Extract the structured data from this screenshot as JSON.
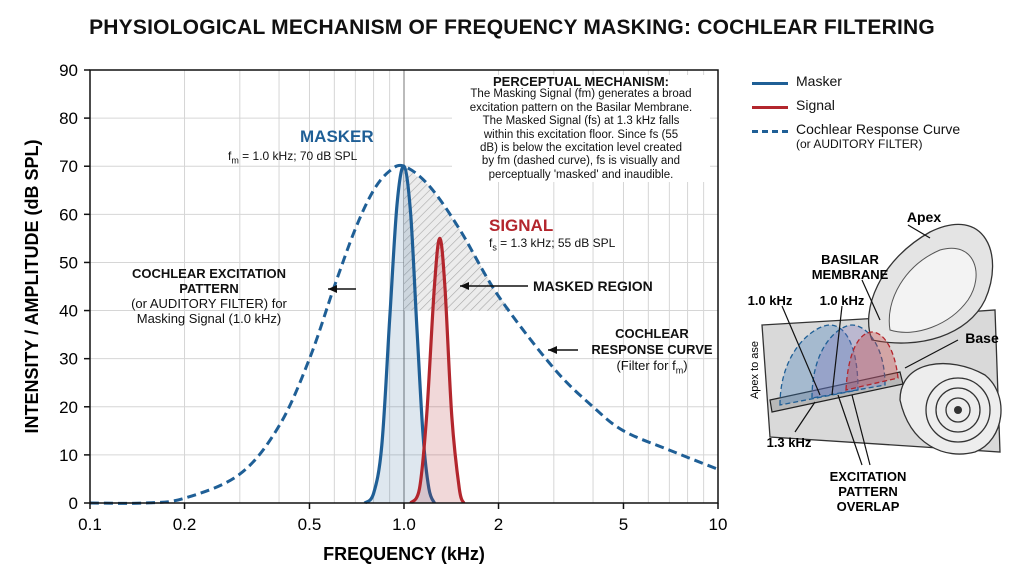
{
  "title": "PHYSIOLOGICAL MECHANISM OF FREQUENCY MASKING: COCHLEAR FILTERING",
  "colors": {
    "masker": "#1f5f96",
    "signal": "#b3262d",
    "response": "#1f5f96",
    "axis": "#111111"
  },
  "chart_data": {
    "type": "line",
    "xscale": "log",
    "xlim": [
      0.1,
      10
    ],
    "ylim": [
      0,
      90
    ],
    "xlabel": "FREQUENCY (kHz)",
    "ylabel": "INTENSITY / AMPLITUDE (dB SPL)",
    "xticks": [
      0.1,
      0.2,
      0.5,
      1.0,
      2,
      5,
      10
    ],
    "xtick_labels": [
      "0.1",
      "0.2",
      "0.5",
      "1.0",
      "2",
      "5",
      "10"
    ],
    "yticks": [
      0,
      10,
      20,
      30,
      40,
      50,
      60,
      70,
      80,
      90
    ],
    "grid": true,
    "series": [
      {
        "name": "Masker",
        "style": "solid",
        "color": "#1f5f96",
        "x": [
          0.75,
          0.8,
          0.85,
          0.9,
          0.95,
          1.0,
          1.05,
          1.1,
          1.15,
          1.2,
          1.25
        ],
        "y": [
          0,
          2,
          12,
          38,
          62,
          70,
          60,
          36,
          14,
          3,
          0
        ]
      },
      {
        "name": "Signal",
        "style": "solid",
        "color": "#b3262d",
        "x": [
          1.05,
          1.12,
          1.18,
          1.25,
          1.3,
          1.35,
          1.42,
          1.5,
          1.55
        ],
        "y": [
          0,
          3,
          18,
          45,
          55,
          45,
          18,
          3,
          0
        ]
      },
      {
        "name": "Cochlear Response Curve",
        "style": "dashed",
        "color": "#1f5f96",
        "x": [
          0.1,
          0.15,
          0.2,
          0.3,
          0.4,
          0.5,
          0.6,
          0.7,
          0.8,
          0.9,
          1.0,
          1.2,
          1.5,
          2,
          3,
          4,
          5,
          7,
          10
        ],
        "y": [
          0,
          0,
          1,
          6,
          16,
          30,
          45,
          57,
          65,
          69,
          70,
          66,
          57,
          43,
          28,
          20,
          15,
          11,
          7
        ]
      }
    ],
    "masked_region": {
      "x": [
        1.0,
        2.2
      ],
      "y_floor": 40
    },
    "annotations": {
      "masker_title": "MASKER",
      "masker_detail_sym": "f",
      "masker_detail_sub": "m",
      "masker_detail_rest": " = 1.0 kHz; 70 dB SPL",
      "signal_title": "SIGNAL",
      "signal_detail_sym": "f",
      "signal_detail_sub": "s",
      "signal_detail_rest": " = 1.3 kHz; 55 dB SPL",
      "masked_region": "MASKED REGION",
      "excitation_l1": "COCHLEAR EXCITATION",
      "excitation_l2": "PATTERN",
      "excitation_l3": "(or AUDITORY FILTER) for",
      "excitation_l4": "Masking Signal (1.0 kHz)",
      "response_l1": "COCHLEAR",
      "response_l2": "RESPONSE CURVE",
      "response_l3_pre": "(Filter for f",
      "response_l3_sub": "m",
      "response_l3_post": ")",
      "mechanism_title": "PERCEPTUAL MECHANISM:",
      "mechanism_lines": [
        "The Masking Signal (fm) generates a broad",
        "excitation pattern on the Basilar Membrane.",
        "The Masked Signal (fs) at 1.3 kHz falls",
        "within this excitation floor. Since fs (55",
        "dB) is below the excitation level created",
        "by fm (dashed curve), fs is visually and",
        "perceptually 'masked' and inaudible."
      ]
    }
  },
  "legend": {
    "masker": "Masker",
    "signal": "Signal",
    "response": "Cochlear Response Curve",
    "response_sub": "(or AUDITORY FILTER)"
  },
  "diagram": {
    "apex": "Apex",
    "basilar_l1": "BASILAR",
    "basilar_l2": "MEMBRANE",
    "base": "Base",
    "khz_left": "1.0 kHz",
    "khz_right": "1.0 kHz",
    "khz_bottom": "1.3 kHz",
    "side_label": "Apex to ase",
    "overlap_l1": "EXCITATION",
    "overlap_l2": "PATTERN",
    "overlap_l3": "OVERLAP"
  }
}
